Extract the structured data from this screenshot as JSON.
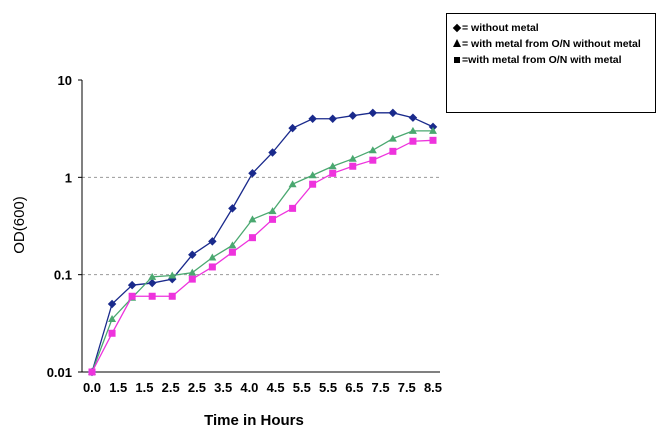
{
  "chart_data": {
    "type": "line",
    "title": "",
    "xlabel": "Time in Hours",
    "ylabel": "OD(600)",
    "yscale": "log",
    "xlim": [
      0,
      8.5
    ],
    "ylim": [
      0.01,
      10
    ],
    "x_ticks": [
      "0.0",
      "1.5",
      "1.5",
      "2.5",
      "2.5",
      "3.5",
      "4.0",
      "4.5",
      "5.5",
      "5.5",
      "6.5",
      "7.5",
      "7.5",
      "8.5"
    ],
    "y_ticks": [
      "0.01",
      "0.1",
      "1",
      "10"
    ],
    "y_tick_values": [
      0.01,
      0.1,
      1,
      10
    ],
    "grid": "dashed horizontal at 0.1 and 1",
    "legend_position": "top-right, outside plot",
    "x": [
      0,
      0.5,
      1,
      1.5,
      2,
      2.5,
      3,
      3.5,
      4,
      4.5,
      5,
      5.5,
      6,
      6.5,
      7,
      7.5,
      8,
      8.5
    ],
    "series": [
      {
        "name": "without metal",
        "legend_text": "= without metal",
        "marker": "diamond",
        "color": "#1a2a8c",
        "values": [
          0.01,
          0.05,
          0.078,
          0.082,
          0.09,
          0.16,
          0.22,
          0.48,
          1.1,
          1.8,
          3.2,
          4.0,
          4.0,
          4.3,
          4.6,
          4.6,
          4.1,
          3.3
        ]
      },
      {
        "name": "with metal from O/N without metal",
        "legend_text": "= with metal from O/N without metal",
        "marker": "triangle",
        "color": "#4aa870",
        "values": [
          0.01,
          0.035,
          0.058,
          0.095,
          0.098,
          0.105,
          0.15,
          0.2,
          0.37,
          0.45,
          0.85,
          1.05,
          1.3,
          1.55,
          1.9,
          2.5,
          3.0,
          3.0
        ]
      },
      {
        "name": "with metal from O/N with metal",
        "legend_text": "=with metal from O/N with metal",
        "marker": "square",
        "color": "#ee33dd",
        "values": [
          0.01,
          0.025,
          0.06,
          0.06,
          0.06,
          0.09,
          0.12,
          0.17,
          0.24,
          0.37,
          0.48,
          0.85,
          1.1,
          1.3,
          1.5,
          1.85,
          2.35,
          2.4
        ]
      }
    ]
  }
}
